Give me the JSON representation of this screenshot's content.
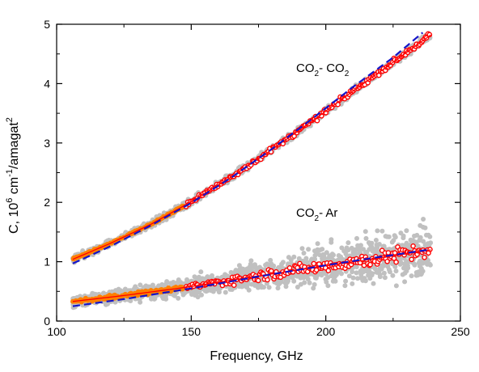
{
  "chart_data": {
    "type": "scatter",
    "xlabel": "Frequency, GHz",
    "ylabel": {
      "prefix": "C, 10",
      "exp1": "6",
      "mid": " cm",
      "exp2": "-1",
      "mid2": "/amagat",
      "exp3": "2"
    },
    "xlim": [
      100,
      250
    ],
    "ylim": [
      0,
      5
    ],
    "xticks": [
      100,
      150,
      200,
      250
    ],
    "yticks": [
      0,
      1,
      2,
      3,
      4,
      5
    ],
    "grid": false,
    "annotations": [
      {
        "id": "co2-co2",
        "parts": [
          "CO",
          "2",
          "- CO",
          "2"
        ],
        "x": 188,
        "y": 4.27
      },
      {
        "id": "co2-ar",
        "parts": [
          "CO",
          "2",
          "- Ar",
          ""
        ],
        "x": 188,
        "y": 1.75
      }
    ],
    "series": [
      {
        "id": "co2co2",
        "x_range": [
          106,
          239
        ],
        "scatter_x_range": [
          106,
          239
        ],
        "orange_x_range": [
          106,
          147
        ],
        "red_x_range": [
          148,
          239
        ],
        "fit_points": [
          [
            106,
            1.04
          ],
          [
            120,
            1.31
          ],
          [
            135,
            1.63
          ],
          [
            150,
            2.01
          ],
          [
            165,
            2.43
          ],
          [
            180,
            2.89
          ],
          [
            195,
            3.37
          ],
          [
            210,
            3.87
          ],
          [
            225,
            4.36
          ],
          [
            239,
            4.82
          ]
        ],
        "model_points": [
          [
            106,
            0.97
          ],
          [
            120,
            1.26
          ],
          [
            135,
            1.61
          ],
          [
            150,
            1.99
          ],
          [
            165,
            2.42
          ],
          [
            180,
            2.9
          ],
          [
            195,
            3.41
          ],
          [
            210,
            3.94
          ],
          [
            225,
            4.44
          ],
          [
            236,
            4.86
          ]
        ],
        "scatter_spread": 0.06,
        "red_spread": 0.04
      },
      {
        "id": "co2ar",
        "x_range": [
          106,
          239
        ],
        "scatter_x_range": [
          106,
          239
        ],
        "orange_x_range": [
          106,
          147
        ],
        "red_x_range": [
          148,
          239
        ],
        "fit_points": [
          [
            106,
            0.33
          ],
          [
            125,
            0.43
          ],
          [
            150,
            0.58
          ],
          [
            175,
            0.76
          ],
          [
            200,
            0.93
          ],
          [
            220,
            1.06
          ],
          [
            239,
            1.2
          ]
        ],
        "model_points": [
          [
            106,
            0.25
          ],
          [
            125,
            0.37
          ],
          [
            150,
            0.55
          ],
          [
            175,
            0.75
          ],
          [
            200,
            0.94
          ],
          [
            220,
            1.08
          ],
          [
            238,
            1.2
          ]
        ],
        "scatter_spread_start": 0.1,
        "scatter_spread_end": 0.48,
        "red_spread_start": 0.05,
        "red_spread_end": 0.14
      }
    ],
    "colors": {
      "scatter": "#c0c0c0",
      "orange": "#ff8000",
      "red": "#ff0000",
      "blue": "#1515c8"
    }
  }
}
